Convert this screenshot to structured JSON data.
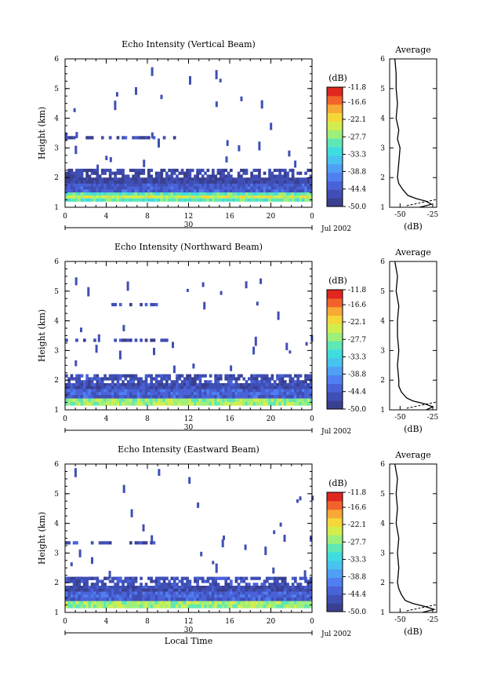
{
  "chart_data": [
    {
      "type": "heatmap",
      "title": "Echo Intensity (Vertical Beam)",
      "ylabel": "Height (km)",
      "ylim": [
        1,
        6
      ],
      "yticks": [
        "1",
        "2",
        "3",
        "4",
        "5",
        "6"
      ],
      "xlim": [
        0,
        24
      ],
      "xticks": [
        "0",
        "4",
        "8",
        "12",
        "16",
        "20",
        "0"
      ],
      "day_label": "30",
      "month_label": "Jul 2002",
      "colorbar": {
        "unit": "(dB)",
        "ticks": [
          "-11.8",
          "-16.6",
          "-22.1",
          "-27.7",
          "-33.3",
          "-38.8",
          "-44.4",
          "-50.0"
        ],
        "range": [
          -50.0,
          -11.8
        ]
      },
      "cloud_layers": [
        {
          "base_km": 3.3,
          "top_km": 3.4,
          "from_h": 0,
          "to_h": 11,
          "db": -46
        },
        {
          "base_km": 1.5,
          "top_km": 2.3,
          "from_h": 0,
          "to_h": 24,
          "db": -47
        },
        {
          "base_km": 1.2,
          "top_km": 1.6,
          "from_h": 0,
          "to_h": 24,
          "db": -30
        }
      ],
      "average_profile": {
        "title": "Average",
        "xlabel": "(dB)",
        "xticks": [
          "-50",
          "-25"
        ],
        "heights_km": [
          1.0,
          1.1,
          1.2,
          1.3,
          1.4,
          1.6,
          1.8,
          2.0,
          2.5,
          3.0,
          3.3,
          3.6,
          4.0,
          4.5,
          5.0,
          5.5,
          6.0
        ],
        "db": [
          -35,
          -26,
          -30,
          -38,
          -44,
          -48,
          -51,
          -52,
          -51,
          -50,
          -52,
          -51,
          -53,
          -52,
          -53,
          -53,
          -54
        ]
      }
    },
    {
      "type": "heatmap",
      "title": "Echo Intensity (Northward Beam)",
      "ylabel": "Height (km)",
      "ylim": [
        1,
        6
      ],
      "yticks": [
        "1",
        "2",
        "3",
        "4",
        "5",
        "6"
      ],
      "xlim": [
        0,
        24
      ],
      "xticks": [
        "0",
        "4",
        "8",
        "12",
        "16",
        "20",
        "0"
      ],
      "day_label": "30",
      "month_label": "Jul 2002",
      "colorbar": {
        "unit": "(dB)",
        "ticks": [
          "-11.8",
          "-16.6",
          "-22.1",
          "-27.7",
          "-33.3",
          "-38.8",
          "-44.4",
          "-50.0"
        ],
        "range": [
          -50.0,
          -11.8
        ]
      },
      "cloud_layers": [
        {
          "base_km": 4.5,
          "top_km": 4.6,
          "from_h": 4,
          "to_h": 9,
          "db": -46
        },
        {
          "base_km": 3.3,
          "top_km": 3.4,
          "from_h": 0,
          "to_h": 10,
          "db": -46
        },
        {
          "base_km": 1.5,
          "top_km": 2.2,
          "from_h": 0,
          "to_h": 24,
          "db": -46
        },
        {
          "base_km": 1.15,
          "top_km": 1.5,
          "from_h": 0,
          "to_h": 24,
          "db": -30
        }
      ],
      "average_profile": {
        "title": "Average",
        "xlabel": "(dB)",
        "xticks": [
          "-50",
          "-25"
        ],
        "heights_km": [
          1.0,
          1.1,
          1.2,
          1.3,
          1.4,
          1.6,
          1.8,
          2.0,
          2.5,
          3.0,
          3.5,
          4.0,
          4.5,
          5.0,
          5.5,
          6.0
        ],
        "db": [
          -30,
          -25,
          -31,
          -40,
          -45,
          -49,
          -51,
          -51,
          -52,
          -51,
          -52,
          -52,
          -51,
          -53,
          -52,
          -54
        ]
      }
    },
    {
      "type": "heatmap",
      "title": "Echo Intensity (Eastward Beam)",
      "ylabel": "Height (km)",
      "ylim": [
        1,
        6
      ],
      "yticks": [
        "1",
        "2",
        "3",
        "4",
        "5",
        "6"
      ],
      "xlim": [
        0,
        24
      ],
      "xticks": [
        "0",
        "4",
        "8",
        "12",
        "16",
        "20",
        "0"
      ],
      "day_label": "30",
      "month_label": "Jul 2002",
      "xlabel": "Local Time",
      "colorbar": {
        "unit": "(dB)",
        "ticks": [
          "-11.8",
          "-16.6",
          "-22.1",
          "-27.7",
          "-33.3",
          "-38.8",
          "-44.4",
          "-50.0"
        ],
        "range": [
          -50.0,
          -11.8
        ]
      },
      "cloud_layers": [
        {
          "base_km": 3.3,
          "top_km": 3.4,
          "from_h": 0,
          "to_h": 9,
          "db": -46
        },
        {
          "base_km": 2.1,
          "top_km": 2.2,
          "from_h": 0,
          "to_h": 13,
          "db": -46
        },
        {
          "base_km": 1.5,
          "top_km": 2.2,
          "from_h": 0,
          "to_h": 24,
          "db": -46
        },
        {
          "base_km": 1.15,
          "top_km": 1.5,
          "from_h": 0,
          "to_h": 24,
          "db": -30
        }
      ],
      "average_profile": {
        "title": "Average",
        "xlabel": "(dB)",
        "xticks": [
          "-50",
          "-25"
        ],
        "heights_km": [
          1.0,
          1.1,
          1.2,
          1.3,
          1.4,
          1.6,
          1.8,
          2.0,
          2.5,
          3.0,
          3.5,
          4.0,
          4.5,
          5.0,
          5.5,
          6.0
        ],
        "db": [
          -33,
          -24,
          -31,
          -40,
          -46,
          -49,
          -51,
          -52,
          -51,
          -52,
          -51,
          -53,
          -52,
          -53,
          -52,
          -54
        ]
      }
    }
  ]
}
